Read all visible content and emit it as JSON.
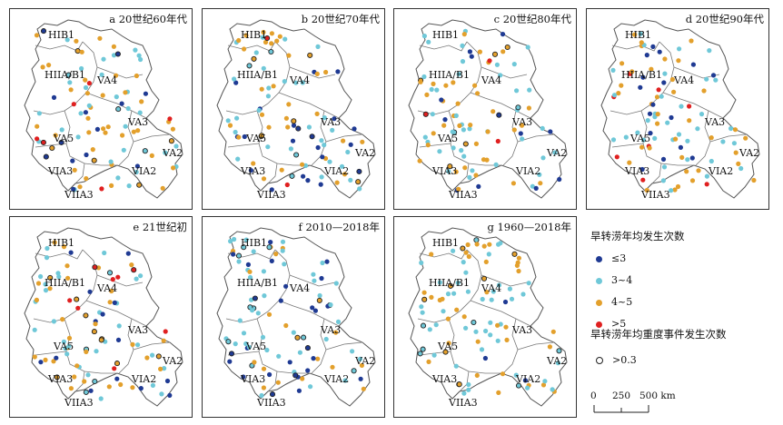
{
  "panels": [
    {
      "title": "a 20世纪60年代",
      "seed": 11
    },
    {
      "title": "b 20世纪70年代",
      "seed": 23
    },
    {
      "title": "c 20世纪80年代",
      "seed": 37
    },
    {
      "title": "d 20世纪90年代",
      "seed": 41
    },
    {
      "title": "e 21世纪初",
      "seed": 53
    },
    {
      "title": "f 2010—2018年",
      "seed": 67
    },
    {
      "title": "g 1960—2018年",
      "seed": 79
    }
  ],
  "regions": {
    "hib1": "HIB1",
    "hiia_b1": "HIIA/B1",
    "va4": "VA4",
    "va3": "VA3",
    "va5": "VA5",
    "va2": "VA2",
    "via3": "VIA3",
    "via2": "VIA2",
    "viia3": "VIIA3"
  },
  "legend": {
    "title": "旱转涝年均发生次数",
    "items": [
      {
        "label": "≤3",
        "color": "#1f3a93"
      },
      {
        "label": "3~4",
        "color": "#6fc8d8"
      },
      {
        "label": "4~5",
        "color": "#e3a02c"
      },
      {
        "label": ">5",
        "color": "#e02020"
      }
    ],
    "severe_title": "旱转涝年均重度事件发生次数",
    "severe_label": ">0.3"
  },
  "scale": {
    "labels": [
      "0",
      "250",
      "500 km"
    ]
  }
}
